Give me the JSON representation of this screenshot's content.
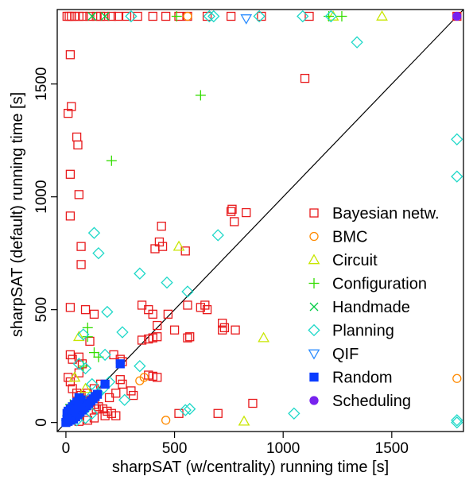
{
  "chart_data": {
    "type": "scatter",
    "title": "",
    "xlabel": "sharpSAT (w/centrality) running time [s]",
    "ylabel": "sharpSAT (default) running time [s]",
    "xlim": [
      -40,
      1830
    ],
    "ylim": [
      -40,
      1830
    ],
    "x_ticks": [
      0,
      500,
      1000,
      1500
    ],
    "y_ticks": [
      0,
      500,
      1000,
      1500
    ],
    "diagonal_line": true,
    "grid": false,
    "legend_position": "right",
    "series": [
      {
        "name": "Bayesian netw.",
        "marker": "square-open",
        "color": "#e8191b",
        "points": [
          [
            5,
            1800
          ],
          [
            15,
            1800
          ],
          [
            25,
            1800
          ],
          [
            40,
            1800
          ],
          [
            60,
            1800
          ],
          [
            80,
            1800
          ],
          [
            110,
            1800
          ],
          [
            140,
            1800
          ],
          [
            160,
            1800
          ],
          [
            180,
            1800
          ],
          [
            210,
            1800
          ],
          [
            240,
            1800
          ],
          [
            280,
            1800
          ],
          [
            330,
            1800
          ],
          [
            400,
            1800
          ],
          [
            460,
            1800
          ],
          [
            520,
            1800
          ],
          [
            560,
            1800
          ],
          [
            650,
            1800
          ],
          [
            760,
            1800
          ],
          [
            900,
            1800
          ],
          [
            1120,
            1800
          ],
          [
            1800,
            1800
          ],
          [
            20,
            1630
          ],
          [
            1100,
            1525
          ],
          [
            25,
            1400
          ],
          [
            10,
            1370
          ],
          [
            50,
            1265
          ],
          [
            55,
            1230
          ],
          [
            20,
            1100
          ],
          [
            60,
            1010
          ],
          [
            20,
            915
          ],
          [
            70,
            780
          ],
          [
            70,
            700
          ],
          [
            440,
            870
          ],
          [
            430,
            800
          ],
          [
            445,
            780
          ],
          [
            410,
            770
          ],
          [
            550,
            760
          ],
          [
            775,
            890
          ],
          [
            760,
            935
          ],
          [
            765,
            945
          ],
          [
            830,
            930
          ],
          [
            720,
            440
          ],
          [
            730,
            420
          ],
          [
            720,
            410
          ],
          [
            780,
            410
          ],
          [
            860,
            85
          ],
          [
            700,
            40
          ],
          [
            560,
            520
          ],
          [
            640,
            520
          ],
          [
            650,
            500
          ],
          [
            620,
            510
          ],
          [
            380,
            500
          ],
          [
            400,
            480
          ],
          [
            350,
            520
          ],
          [
            420,
            430
          ],
          [
            470,
            480
          ],
          [
            400,
            375
          ],
          [
            380,
            370
          ],
          [
            420,
            380
          ],
          [
            350,
            365
          ],
          [
            560,
            375
          ],
          [
            570,
            380
          ],
          [
            500,
            410
          ],
          [
            220,
            300
          ],
          [
            250,
            280
          ],
          [
            260,
            270
          ],
          [
            20,
            510
          ],
          [
            90,
            500
          ],
          [
            130,
            480
          ],
          [
            110,
            360
          ],
          [
            20,
            300
          ],
          [
            30,
            280
          ],
          [
            60,
            290
          ],
          [
            75,
            260
          ],
          [
            60,
            220
          ],
          [
            10,
            200
          ],
          [
            20,
            180
          ],
          [
            30,
            150
          ],
          [
            50,
            130
          ],
          [
            70,
            120
          ],
          [
            90,
            100
          ],
          [
            110,
            90
          ],
          [
            130,
            80
          ],
          [
            150,
            70
          ],
          [
            170,
            60
          ],
          [
            190,
            50
          ],
          [
            210,
            40
          ],
          [
            230,
            30
          ],
          [
            380,
            210
          ],
          [
            400,
            205
          ],
          [
            420,
            200
          ],
          [
            300,
            140
          ],
          [
            310,
            120
          ],
          [
            230,
            130
          ],
          [
            200,
            110
          ],
          [
            250,
            190
          ],
          [
            260,
            170
          ],
          [
            160,
            170
          ],
          [
            130,
            150
          ],
          [
            100,
            130
          ],
          [
            140,
            60
          ],
          [
            180,
            30
          ],
          [
            130,
            20
          ],
          [
            100,
            10
          ],
          [
            60,
            5
          ],
          [
            520,
            40
          ]
        ]
      },
      {
        "name": "BMC",
        "marker": "circle-open",
        "color": "#ff8a00",
        "points": [
          [
            560,
            1800
          ],
          [
            340,
            185
          ],
          [
            360,
            200
          ],
          [
            460,
            10
          ],
          [
            1800,
            195
          ],
          [
            30,
            20
          ],
          [
            20,
            10
          ]
        ]
      },
      {
        "name": "Circuit",
        "marker": "triangle-open",
        "color": "#c8e600",
        "points": [
          [
            1230,
            1800
          ],
          [
            1455,
            1800
          ],
          [
            520,
            780
          ],
          [
            910,
            375
          ],
          [
            820,
            5
          ],
          [
            60,
            380
          ],
          [
            40,
            200
          ],
          [
            90,
            150
          ],
          [
            60,
            100
          ]
        ]
      },
      {
        "name": "Configuration",
        "marker": "plus",
        "color": "#33dd00",
        "points": [
          [
            510,
            1800
          ],
          [
            1270,
            1800
          ],
          [
            1210,
            1800
          ],
          [
            620,
            1450
          ],
          [
            210,
            1160
          ],
          [
            100,
            420
          ],
          [
            100,
            380
          ],
          [
            130,
            310
          ],
          [
            150,
            290
          ],
          [
            80,
            250
          ],
          [
            20,
            80
          ],
          [
            10,
            40
          ]
        ]
      },
      {
        "name": "Handmade",
        "marker": "cross",
        "color": "#00cc44",
        "points": [
          [
            120,
            1800
          ],
          [
            180,
            1800
          ],
          [
            40,
            60
          ],
          [
            20,
            30
          ],
          [
            60,
            40
          ]
        ]
      },
      {
        "name": "Planning",
        "marker": "diamond-open",
        "color": "#1ed8c8",
        "points": [
          [
            300,
            1800
          ],
          [
            660,
            1800
          ],
          [
            680,
            1800
          ],
          [
            890,
            1800
          ],
          [
            1090,
            1800
          ],
          [
            1220,
            1800
          ],
          [
            1340,
            1685
          ],
          [
            1800,
            1255
          ],
          [
            1800,
            1090
          ],
          [
            1800,
            10
          ],
          [
            1800,
            0
          ],
          [
            130,
            840
          ],
          [
            150,
            750
          ],
          [
            700,
            830
          ],
          [
            465,
            620
          ],
          [
            560,
            580
          ],
          [
            340,
            660
          ],
          [
            190,
            490
          ],
          [
            260,
            400
          ],
          [
            340,
            250
          ],
          [
            80,
            390
          ],
          [
            180,
            300
          ],
          [
            90,
            240
          ],
          [
            200,
            180
          ],
          [
            170,
            150
          ],
          [
            150,
            130
          ],
          [
            110,
            110
          ],
          [
            70,
            90
          ],
          [
            40,
            70
          ],
          [
            20,
            50
          ],
          [
            10,
            30
          ],
          [
            5,
            10
          ],
          [
            270,
            100
          ],
          [
            120,
            40
          ],
          [
            90,
            20
          ],
          [
            50,
            10
          ],
          [
            550,
            55
          ],
          [
            570,
            60
          ],
          [
            1050,
            40
          ],
          [
            60,
            260
          ],
          [
            120,
            170
          ]
        ]
      },
      {
        "name": "QIF",
        "marker": "triangle-down-open",
        "color": "#2b8cff",
        "points": [
          [
            830,
            1790
          ],
          [
            20,
            10
          ]
        ]
      },
      {
        "name": "Random",
        "marker": "square-filled",
        "color": "#0a3cff",
        "points": [
          [
            250,
            260
          ],
          [
            180,
            170
          ],
          [
            60,
            110
          ],
          [
            70,
            100
          ],
          [
            50,
            90
          ],
          [
            40,
            80
          ],
          [
            30,
            70
          ],
          [
            20,
            60
          ],
          [
            10,
            50
          ],
          [
            5,
            40
          ],
          [
            15,
            30
          ],
          [
            25,
            20
          ],
          [
            35,
            15
          ],
          [
            45,
            25
          ],
          [
            55,
            35
          ],
          [
            65,
            45
          ],
          [
            75,
            55
          ],
          [
            85,
            65
          ],
          [
            95,
            75
          ],
          [
            105,
            85
          ],
          [
            115,
            95
          ],
          [
            125,
            105
          ],
          [
            135,
            115
          ],
          [
            145,
            125
          ],
          [
            30,
            40
          ],
          [
            40,
            50
          ],
          [
            50,
            60
          ],
          [
            60,
            70
          ],
          [
            20,
            10
          ],
          [
            10,
            5
          ],
          [
            0,
            0
          ],
          [
            5,
            15
          ]
        ]
      },
      {
        "name": "Scheduling",
        "marker": "circle-filled",
        "color": "#7722ee",
        "points": [
          [
            1800,
            1800
          ]
        ]
      }
    ]
  }
}
